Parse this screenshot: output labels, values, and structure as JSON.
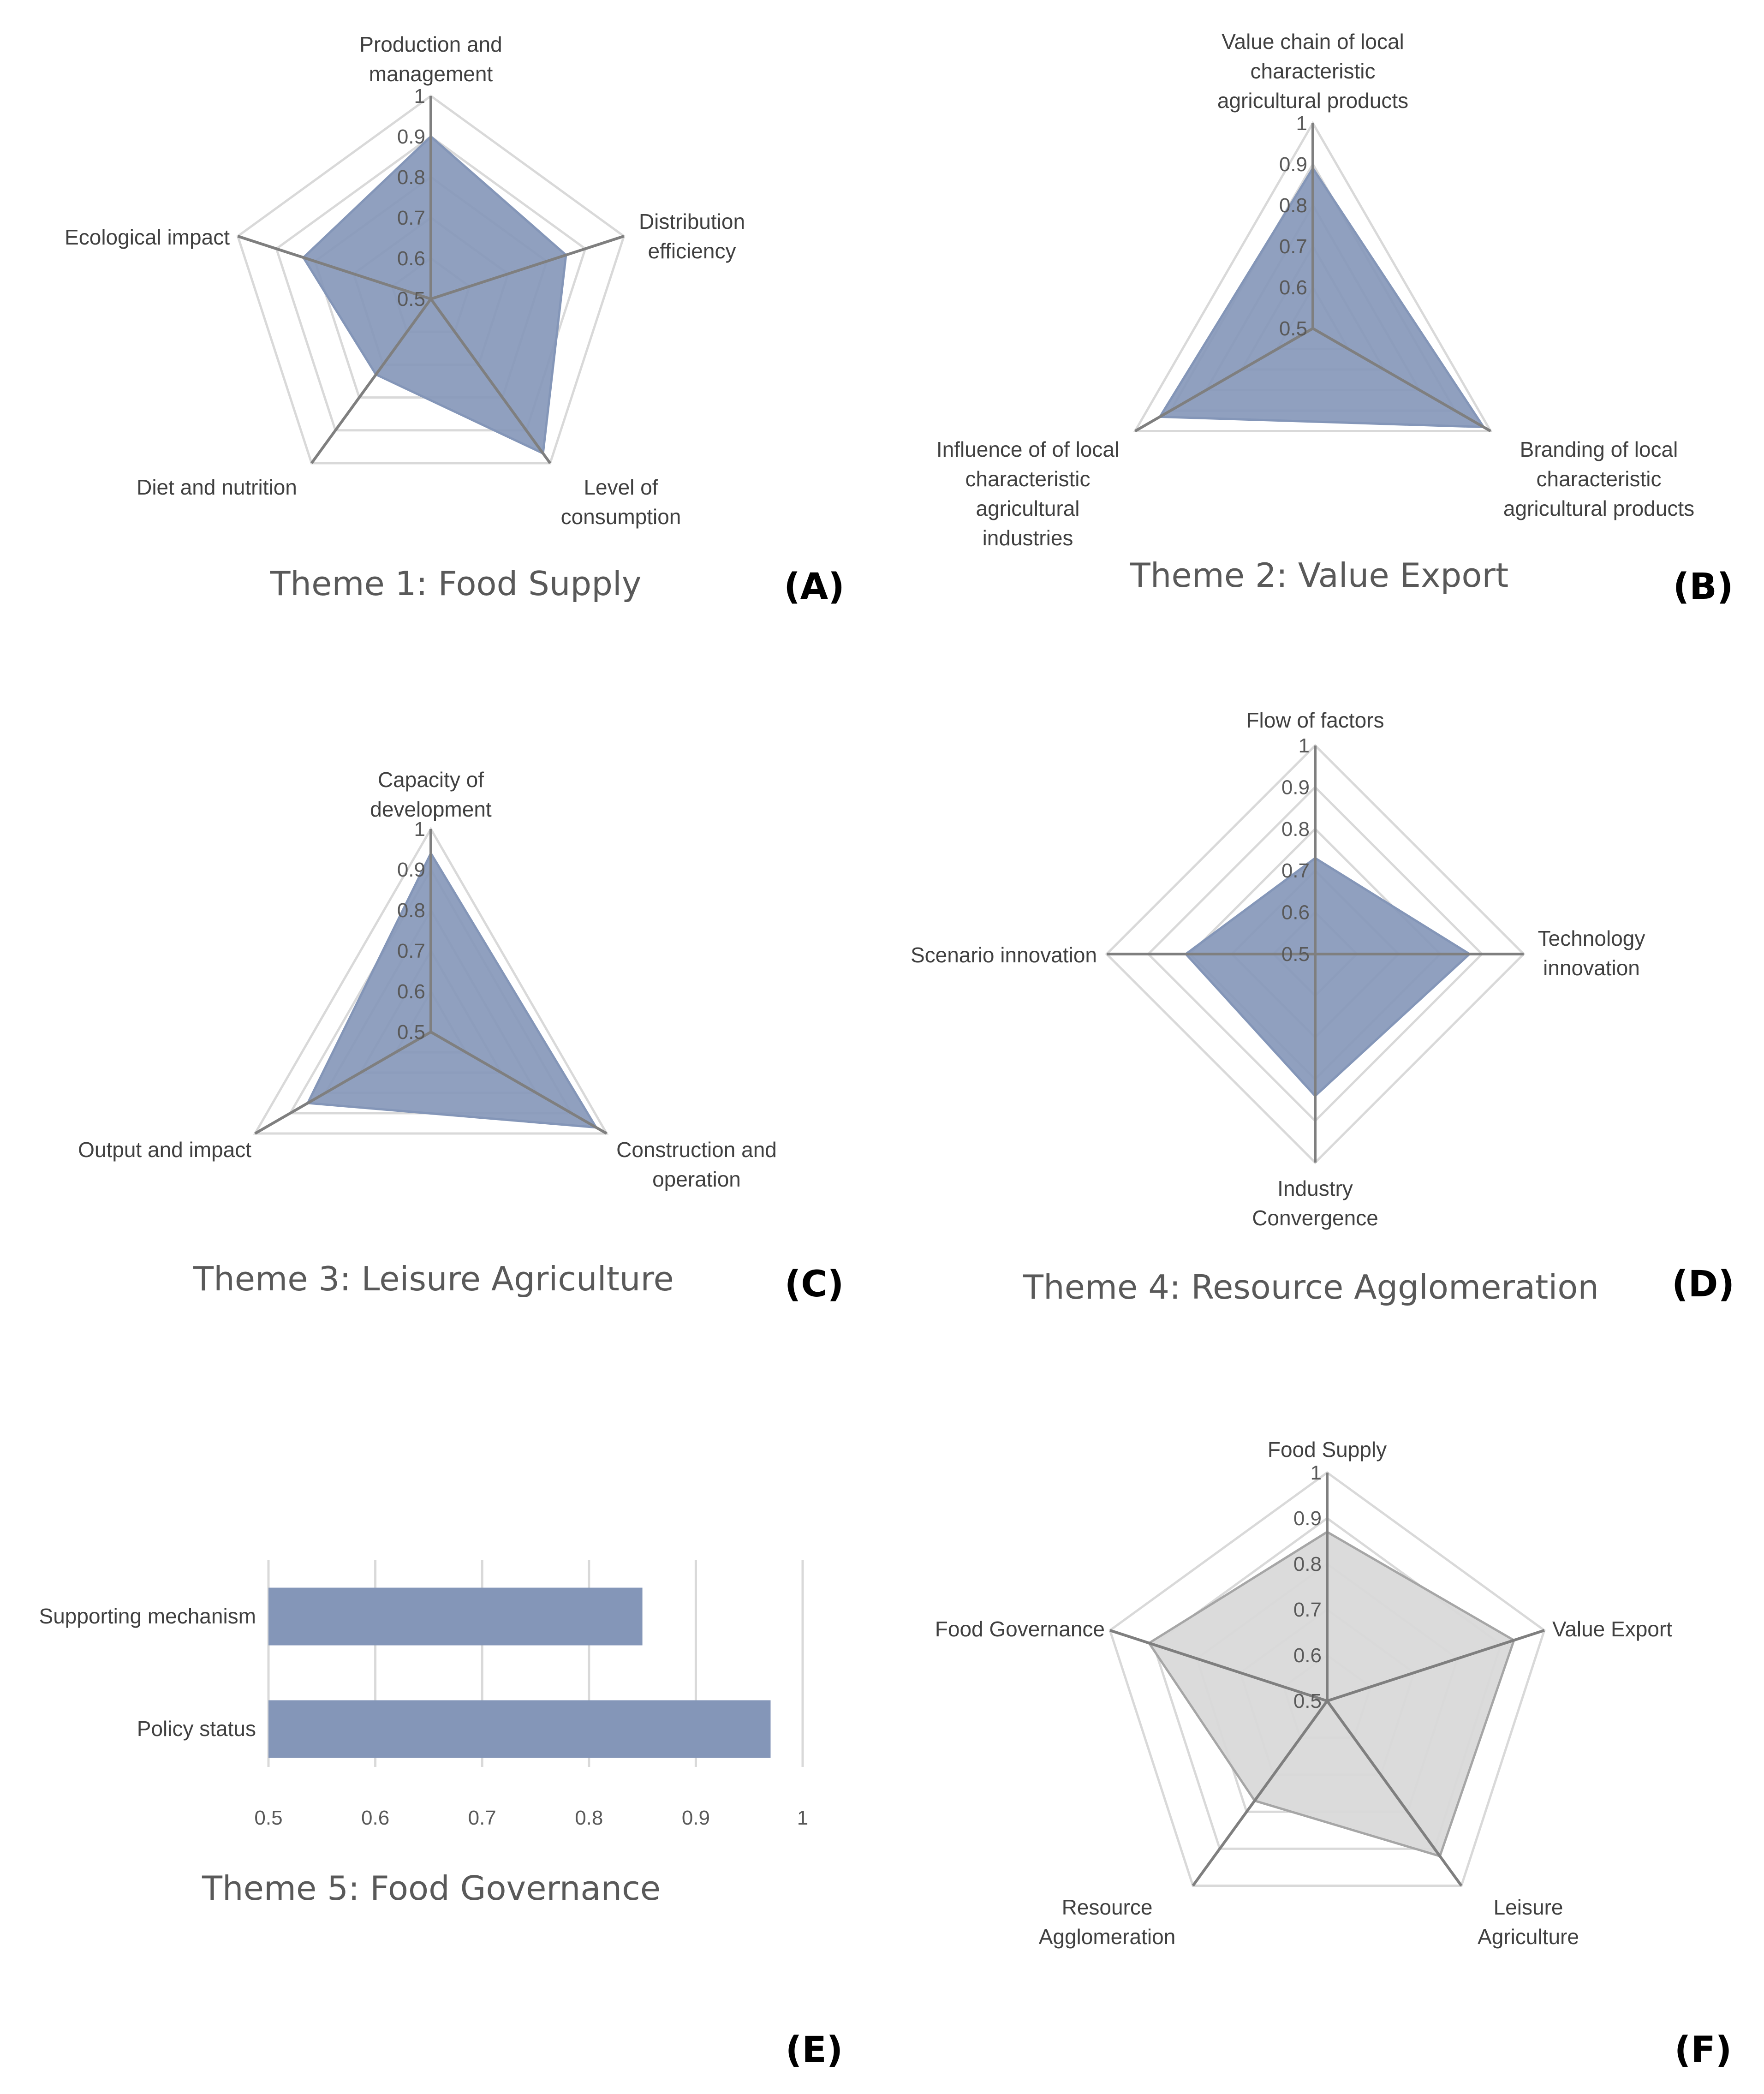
{
  "colors": {
    "fill_blue": "#8496b8",
    "stroke_blue": "#8496b8",
    "fill_gray": "#d9d9d9",
    "stroke_gray": "#a6a6a6",
    "grid": "#d9d9d9",
    "spoke": "#7f7f7f"
  },
  "chart_data": [
    {
      "panel": "(A)",
      "title": "Theme 1: Food Supply",
      "type": "radar",
      "range": [
        0.5,
        1
      ],
      "ticks": [
        "0.5",
        "0.6",
        "0.7",
        "0.8",
        "0.9",
        "1"
      ],
      "categories": [
        [
          "Production and",
          "management"
        ],
        [
          "Distribution",
          "efficiency"
        ],
        [
          "Level of",
          "consumption"
        ],
        [
          "Diet and nutrition"
        ],
        [
          "Ecological impact"
        ]
      ],
      "values": [
        0.9,
        0.85,
        0.97,
        0.73,
        0.83
      ],
      "style": "blue"
    },
    {
      "panel": "(B)",
      "title": "Theme 2: Value Export",
      "type": "radar",
      "range": [
        0.5,
        1
      ],
      "ticks": [
        "0.5",
        "0.6",
        "0.7",
        "0.8",
        "0.9",
        "1"
      ],
      "categories": [
        [
          "Value chain of local",
          "characteristic",
          "agricultural products"
        ],
        [
          "Branding of local",
          "characteristic",
          "agricultural products"
        ],
        [
          "Influence of of local",
          "characteristic",
          "agricultural",
          "industries"
        ]
      ],
      "values": [
        0.89,
        0.98,
        0.93
      ],
      "style": "blue"
    },
    {
      "panel": "(C)",
      "title": "Theme 3: Leisure Agriculture",
      "type": "radar",
      "range": [
        0.5,
        1
      ],
      "ticks": [
        "0.5",
        "0.6",
        "0.7",
        "0.8",
        "0.9",
        "1"
      ],
      "categories": [
        [
          "Capacity of",
          "development"
        ],
        [
          "Construction and",
          "operation"
        ],
        [
          "Output and impact"
        ]
      ],
      "values": [
        0.94,
        0.97,
        0.85
      ],
      "style": "blue"
    },
    {
      "panel": "(D)",
      "title": "Theme 4: Resource Agglomeration",
      "type": "radar",
      "range": [
        0.5,
        1
      ],
      "ticks": [
        "0.5",
        "0.6",
        "0.7",
        "0.8",
        "0.9",
        "1"
      ],
      "categories": [
        [
          "Flow of factors"
        ],
        [
          "Technology",
          "innovation"
        ],
        [
          "Industry",
          "Convergence"
        ],
        [
          "Scenario innovation"
        ]
      ],
      "values": [
        0.73,
        0.87,
        0.84,
        0.81
      ],
      "style": "blue"
    },
    {
      "panel": "(E)",
      "title": "Theme 5: Food Governance",
      "type": "bar",
      "orientation": "horizontal",
      "categories": [
        "Supporting mechanism",
        "Policy status"
      ],
      "values": [
        0.85,
        0.97
      ],
      "xlim": [
        0.5,
        1
      ],
      "ticks": [
        "0.5",
        "0.6",
        "0.7",
        "0.8",
        "0.9",
        "1"
      ],
      "style": "blue"
    },
    {
      "panel": "(F)",
      "title": "",
      "type": "radar",
      "range": [
        0.5,
        1
      ],
      "ticks": [
        "0.5",
        "0.6",
        "0.7",
        "0.8",
        "0.9",
        "1"
      ],
      "categories": [
        [
          "Food Supply"
        ],
        [
          "Value Export"
        ],
        [
          "Leisure",
          "Agriculture"
        ],
        [
          "Resource",
          "Agglomeration"
        ],
        [
          "Food Governance"
        ]
      ],
      "values": [
        0.87,
        0.93,
        0.92,
        0.77,
        0.91
      ],
      "style": "gray"
    }
  ]
}
